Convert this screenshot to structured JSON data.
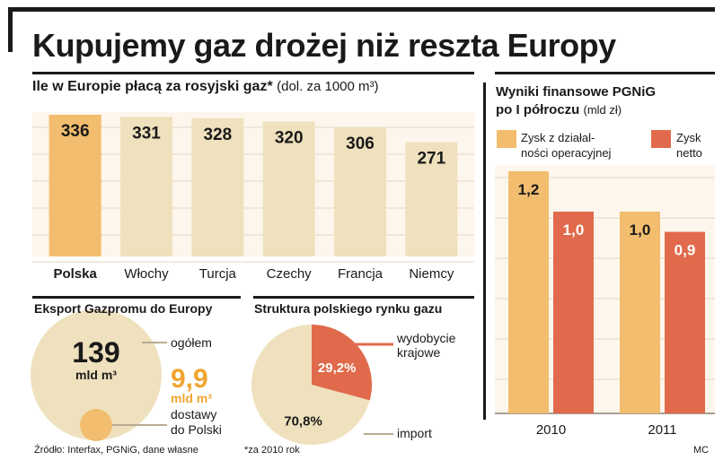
{
  "title": "Kupujemy gaz drożej niż reszta Europy",
  "colors": {
    "highlight": "#f2bd6e",
    "bar": "#efe1bd",
    "panel_bg": "#fdf6ec",
    "red": "#e06a4b",
    "orange_text": "#f0a531",
    "dark": "#1a1a1a"
  },
  "sections": {
    "gas_prices": {
      "heading": "Ile w Europie płacą za rosyjski gaz*",
      "unit": "(dol. za 1000 m³)"
    },
    "export": {
      "heading": "Eksport Gazpromu do Europy",
      "total_value": "139",
      "total_unit": "mld m³",
      "total_label": "ogółem",
      "poland_value": "9,9",
      "poland_unit": "mld m³",
      "poland_label_1": "dostawy",
      "poland_label_2": "do Polski"
    },
    "structure": {
      "heading": "Struktura polskiego rynku gazu"
    },
    "pgnig": {
      "heading_1": "Wyniki finansowe PGNiG",
      "heading_2": "po I półroczu",
      "unit": "(mld zł)"
    }
  },
  "footer": {
    "source": "Źródło: Interfax, PGNiG, dane własne",
    "footnote": "*za 2010 rok",
    "credit": "MC"
  },
  "chart_data": [
    {
      "type": "bar",
      "title": "Ile w Europie płacą za rosyjski gaz*",
      "unit": "(dol. za 1000 m³)",
      "categories": [
        "Polska",
        "Włochy",
        "Turcja",
        "Czechy",
        "Francja",
        "Niemcy"
      ],
      "values": [
        336,
        331,
        328,
        320,
        306,
        271
      ],
      "value_labels": [
        "336",
        "331",
        "328",
        "320",
        "306",
        "271"
      ],
      "highlight_index": 0,
      "grid": true
    },
    {
      "type": "pie",
      "title": "Struktura polskiego rynku gazu",
      "labels": [
        "wydobycie krajowe",
        "import"
      ],
      "values": [
        29.2,
        70.8
      ],
      "value_labels": [
        "29,2%",
        "70,8%"
      ]
    },
    {
      "type": "bar",
      "title": "Wyniki finansowe PGNiG po I półroczu",
      "unit": "(mld zł)",
      "categories": [
        "2010",
        "2011"
      ],
      "series": [
        {
          "name": "Zysk z działalności operacyjnej",
          "legend_lines": [
            "Zysk z działal-",
            "ności operacyjnej"
          ],
          "values": [
            1.2,
            1.0
          ],
          "value_labels": [
            "1,2",
            "1,0"
          ]
        },
        {
          "name": "Zysk netto",
          "legend_lines": [
            "Zysk",
            "netto"
          ],
          "values": [
            1.0,
            0.9
          ],
          "value_labels": [
            "1,0",
            "0,9"
          ]
        }
      ],
      "grid": true
    }
  ]
}
